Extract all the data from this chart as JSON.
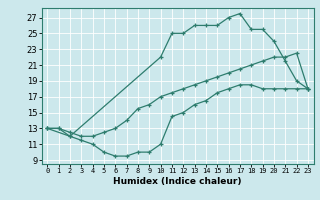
{
  "xlabel": "Humidex (Indice chaleur)",
  "bg_color": "#cce8ec",
  "grid_color": "#b0d4d8",
  "line_color": "#2e7d6e",
  "xlim": [
    -0.5,
    23.5
  ],
  "ylim": [
    8.5,
    28.2
  ],
  "xticks": [
    0,
    1,
    2,
    3,
    4,
    5,
    6,
    7,
    8,
    9,
    10,
    11,
    12,
    13,
    14,
    15,
    16,
    17,
    18,
    19,
    20,
    21,
    22,
    23
  ],
  "yticks": [
    9,
    11,
    13,
    15,
    17,
    19,
    21,
    23,
    25,
    27
  ],
  "line1_x": [
    0,
    1,
    2,
    10,
    11,
    12,
    13,
    14,
    15,
    16,
    17,
    18,
    19,
    20,
    21,
    22,
    23
  ],
  "line1_y": [
    13,
    13,
    12,
    22,
    25,
    25,
    26,
    26,
    26,
    27,
    27.5,
    25.5,
    25.5,
    24,
    21.5,
    19,
    18
  ],
  "line2_x": [
    0,
    2,
    3,
    4,
    5,
    6,
    7,
    8,
    9,
    10,
    11,
    12,
    13,
    14,
    15,
    16,
    17,
    18,
    19,
    20,
    21,
    22,
    23
  ],
  "line2_y": [
    13,
    12,
    11.5,
    11,
    10,
    9.5,
    9.5,
    10,
    10,
    11,
    14.5,
    15,
    16,
    16.5,
    17.5,
    18,
    18.5,
    18.5,
    18,
    18,
    18,
    18,
    18
  ],
  "line3_x": [
    0,
    1,
    2,
    3,
    4,
    5,
    6,
    7,
    8,
    9,
    10,
    11,
    12,
    13,
    14,
    15,
    16,
    17,
    18,
    19,
    20,
    21,
    22,
    23
  ],
  "line3_y": [
    13,
    13,
    12.5,
    12,
    12,
    12.5,
    13,
    14,
    15.5,
    16,
    17,
    17.5,
    18,
    18.5,
    19,
    19.5,
    20,
    20.5,
    21,
    21.5,
    22,
    22,
    22.5,
    18
  ]
}
